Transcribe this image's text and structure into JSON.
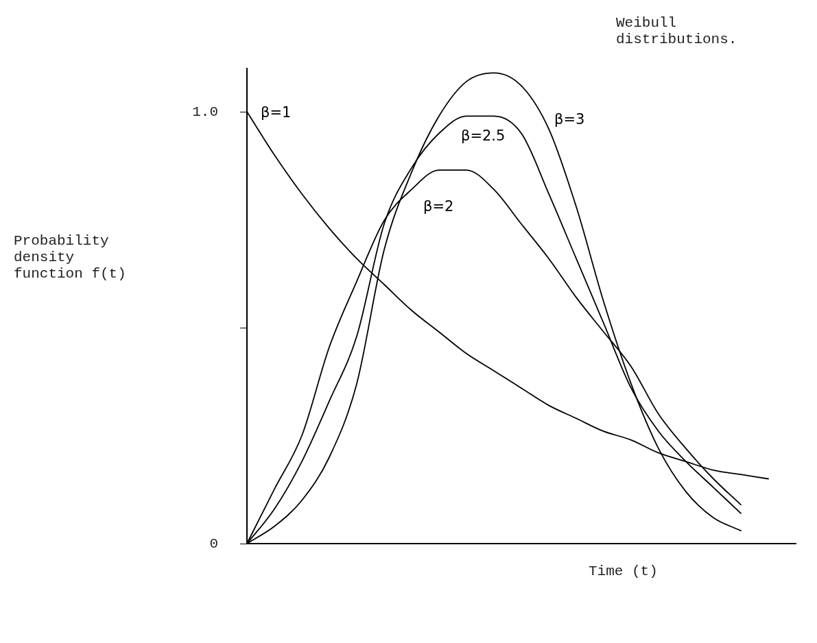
{
  "chart_data": {
    "type": "line",
    "title": "Weibull distributions.",
    "xlabel": "Time (t)",
    "ylabel": "Probability density function f(t)",
    "categories": [
      null,
      null,
      null,
      null,
      null,
      null,
      null,
      null,
      null,
      null,
      null,
      null,
      null,
      null,
      null,
      null,
      null,
      null,
      null,
      null,
      null
    ],
    "series": [
      {
        "name": "β=1",
        "color": "#000000",
        "values": [
          1.0,
          0.9,
          0.81,
          0.73,
          0.66,
          0.6,
          0.54,
          0.49,
          0.44,
          0.4,
          0.36,
          0.32,
          0.29,
          0.26,
          0.24,
          0.21,
          0.19,
          0.17,
          0.16,
          0.15,
          null
        ]
      },
      {
        "name": "β=2",
        "color": "#000000",
        "values": [
          0,
          0.126,
          0.25,
          0.455,
          0.607,
          0.748,
          0.82,
          0.865,
          0.865,
          0.82,
          0.74,
          0.66,
          0.57,
          0.49,
          0.41,
          0.3,
          0.22,
          0.15,
          0.09,
          null,
          null
        ]
      },
      {
        "name": "β=2.5",
        "color": "#000000",
        "values": [
          0,
          0.08,
          0.19,
          0.33,
          0.48,
          0.74,
          0.87,
          0.95,
          0.99,
          0.99,
          0.95,
          0.81,
          0.66,
          0.51,
          0.36,
          0.26,
          0.19,
          0.13,
          0.07,
          null,
          null
        ]
      },
      {
        "name": "β=3",
        "color": "#000000",
        "values": [
          0,
          0.04,
          0.1,
          0.2,
          0.37,
          0.68,
          0.86,
          0.99,
          1.07,
          1.09,
          1.06,
          0.96,
          0.78,
          0.56,
          0.37,
          0.22,
          0.12,
          0.06,
          0.03,
          null,
          null
        ]
      }
    ],
    "ylim": [
      0,
      1.1
    ],
    "yticks": [
      0,
      {
        "value": 0.5,
        "label": null
      },
      {
        "value": 1,
        "label": "1.0"
      }
    ],
    "tick_labels": "y",
    "grid": false,
    "legend": false,
    "marker": "none",
    "line_style": "solid"
  }
}
